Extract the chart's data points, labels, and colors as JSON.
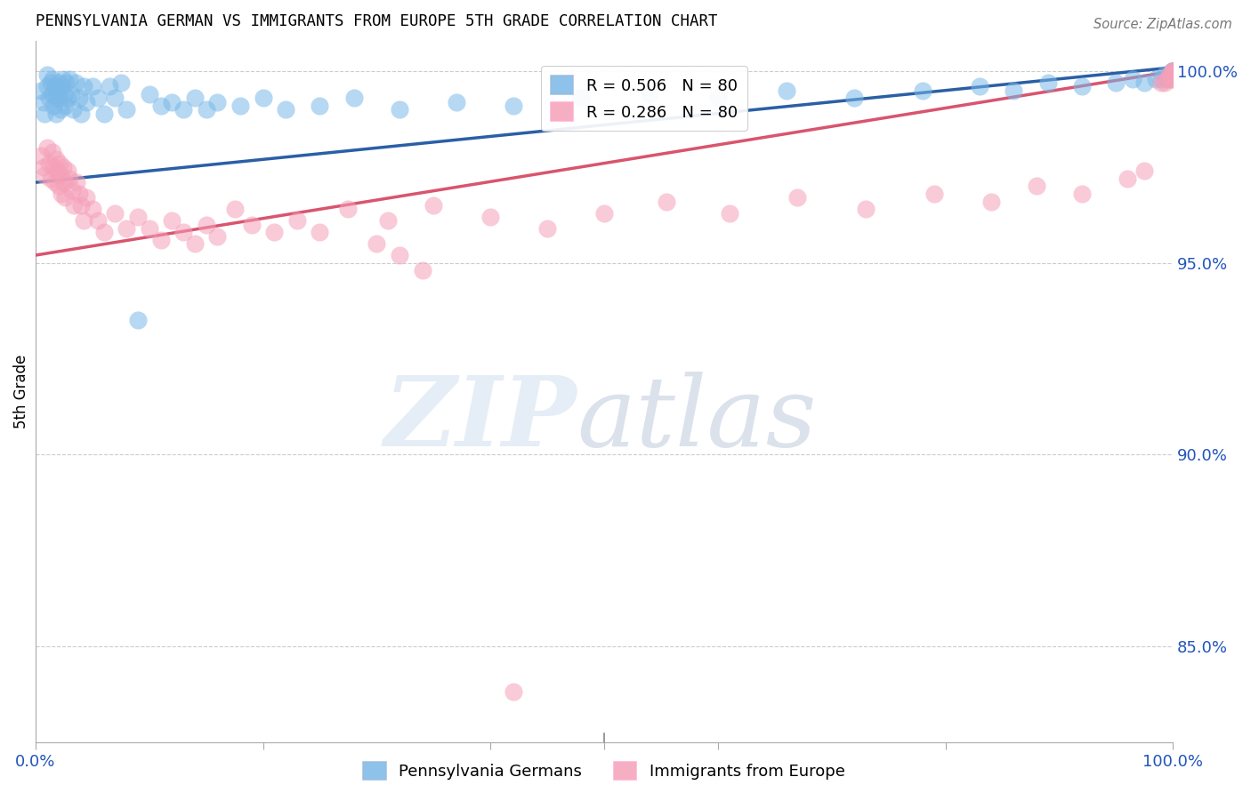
{
  "title": "PENNSYLVANIA GERMAN VS IMMIGRANTS FROM EUROPE 5TH GRADE CORRELATION CHART",
  "source": "Source: ZipAtlas.com",
  "ylabel": "5th Grade",
  "xlim": [
    0.0,
    1.0
  ],
  "ylim": [
    0.825,
    1.008
  ],
  "yticks": [
    0.85,
    0.9,
    0.95,
    1.0
  ],
  "ytick_labels": [
    "85.0%",
    "90.0%",
    "95.0%",
    "100.0%"
  ],
  "blue_R": 0.506,
  "blue_N": 80,
  "pink_R": 0.286,
  "pink_N": 80,
  "blue_color": "#7ab8e8",
  "pink_color": "#f5a0b8",
  "blue_line_color": "#2a5fa5",
  "pink_line_color": "#d9546e",
  "legend_label_blue": "Pennsylvania Germans",
  "legend_label_pink": "Immigrants from Europe",
  "blue_line_start_y": 0.971,
  "blue_line_end_y": 1.001,
  "pink_line_start_y": 0.952,
  "pink_line_end_y": 1.0,
  "blue_x": [
    0.005,
    0.007,
    0.008,
    0.01,
    0.01,
    0.012,
    0.013,
    0.015,
    0.015,
    0.016,
    0.017,
    0.018,
    0.018,
    0.019,
    0.02,
    0.021,
    0.022,
    0.023,
    0.024,
    0.025,
    0.026,
    0.027,
    0.028,
    0.03,
    0.031,
    0.033,
    0.035,
    0.038,
    0.04,
    0.042,
    0.045,
    0.05,
    0.055,
    0.06,
    0.065,
    0.07,
    0.075,
    0.08,
    0.09,
    0.1,
    0.11,
    0.12,
    0.13,
    0.14,
    0.15,
    0.16,
    0.18,
    0.2,
    0.22,
    0.25,
    0.28,
    0.32,
    0.37,
    0.42,
    0.48,
    0.54,
    0.6,
    0.66,
    0.72,
    0.78,
    0.83,
    0.86,
    0.89,
    0.92,
    0.95,
    0.965,
    0.975,
    0.985,
    0.99,
    0.993,
    0.995,
    0.997,
    0.998,
    0.999,
    0.999,
    1.0,
    1.0,
    1.0,
    1.0,
    1.0
  ],
  "blue_y": [
    0.995,
    0.992,
    0.989,
    0.999,
    0.996,
    0.993,
    0.997,
    0.998,
    0.994,
    0.991,
    0.996,
    0.993,
    0.989,
    0.995,
    0.997,
    0.993,
    0.99,
    0.996,
    0.998,
    0.994,
    0.991,
    0.997,
    0.993,
    0.998,
    0.994,
    0.99,
    0.997,
    0.993,
    0.989,
    0.996,
    0.992,
    0.996,
    0.993,
    0.989,
    0.996,
    0.993,
    0.997,
    0.99,
    0.935,
    0.994,
    0.991,
    0.992,
    0.99,
    0.993,
    0.99,
    0.992,
    0.991,
    0.993,
    0.99,
    0.991,
    0.993,
    0.99,
    0.992,
    0.991,
    0.993,
    0.994,
    0.993,
    0.995,
    0.993,
    0.995,
    0.996,
    0.995,
    0.997,
    0.996,
    0.997,
    0.998,
    0.997,
    0.998,
    0.998,
    0.999,
    0.998,
    0.999,
    0.999,
    1.0,
    0.999,
    1.0,
    1.0,
    1.0,
    1.0,
    0.999
  ],
  "pink_x": [
    0.005,
    0.007,
    0.008,
    0.01,
    0.012,
    0.013,
    0.015,
    0.016,
    0.017,
    0.018,
    0.019,
    0.02,
    0.021,
    0.022,
    0.023,
    0.024,
    0.025,
    0.026,
    0.028,
    0.03,
    0.032,
    0.034,
    0.036,
    0.038,
    0.04,
    0.042,
    0.045,
    0.05,
    0.055,
    0.06,
    0.07,
    0.08,
    0.09,
    0.1,
    0.11,
    0.12,
    0.13,
    0.14,
    0.15,
    0.16,
    0.175,
    0.19,
    0.21,
    0.23,
    0.25,
    0.275,
    0.31,
    0.35,
    0.4,
    0.45,
    0.5,
    0.555,
    0.61,
    0.67,
    0.73,
    0.79,
    0.84,
    0.88,
    0.92,
    0.96,
    0.975,
    0.99,
    0.993,
    0.995,
    0.997,
    0.998,
    0.999,
    0.999,
    1.0,
    1.0,
    1.0,
    1.0,
    1.0,
    1.0,
    1.0,
    1.0,
    0.3,
    0.32,
    0.34,
    0.42
  ],
  "pink_y": [
    0.978,
    0.975,
    0.973,
    0.98,
    0.976,
    0.972,
    0.979,
    0.975,
    0.971,
    0.977,
    0.974,
    0.97,
    0.976,
    0.973,
    0.968,
    0.975,
    0.971,
    0.967,
    0.974,
    0.972,
    0.969,
    0.965,
    0.971,
    0.968,
    0.965,
    0.961,
    0.967,
    0.964,
    0.961,
    0.958,
    0.963,
    0.959,
    0.962,
    0.959,
    0.956,
    0.961,
    0.958,
    0.955,
    0.96,
    0.957,
    0.964,
    0.96,
    0.958,
    0.961,
    0.958,
    0.964,
    0.961,
    0.965,
    0.962,
    0.959,
    0.963,
    0.966,
    0.963,
    0.967,
    0.964,
    0.968,
    0.966,
    0.97,
    0.968,
    0.972,
    0.974,
    0.997,
    0.997,
    0.998,
    0.999,
    0.998,
    0.999,
    0.998,
    0.999,
    0.999,
    1.0,
    0.999,
    0.999,
    1.0,
    1.0,
    0.999,
    0.955,
    0.952,
    0.948,
    0.838
  ]
}
